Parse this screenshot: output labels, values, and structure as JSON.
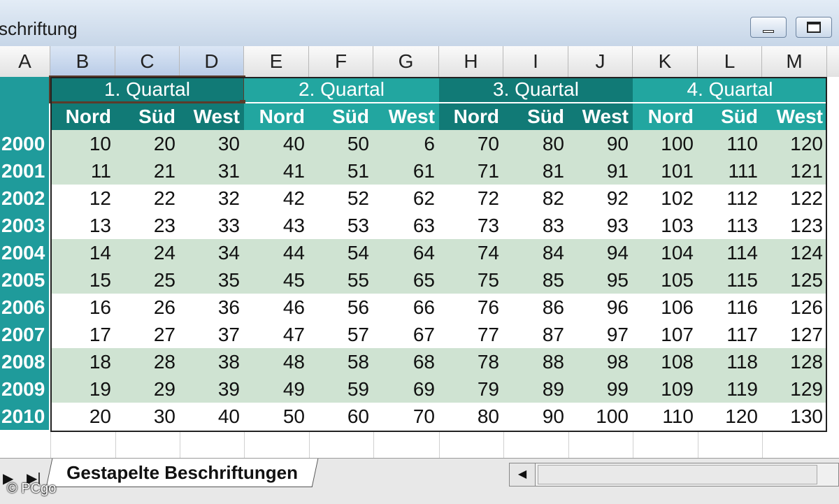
{
  "window": {
    "title": "schriftung"
  },
  "columns": [
    "A",
    "B",
    "C",
    "D",
    "E",
    "F",
    "G",
    "H",
    "I",
    "J",
    "K",
    "L",
    "M"
  ],
  "quarters": [
    "1. Quartal",
    "2. Quartal",
    "3. Quartal",
    "4. Quartal"
  ],
  "regions": [
    "Nord",
    "Süd",
    "West",
    "Nord",
    "Süd",
    "West",
    "Nord",
    "Süd",
    "West",
    "Nord",
    "Süd",
    "West"
  ],
  "years": [
    "2000",
    "2001",
    "2002",
    "2003",
    "2004",
    "2005",
    "2006",
    "2007",
    "2008",
    "2009",
    "2010"
  ],
  "rows": [
    [
      10,
      20,
      30,
      40,
      50,
      6,
      70,
      80,
      90,
      100,
      110,
      120
    ],
    [
      11,
      21,
      31,
      41,
      51,
      61,
      71,
      81,
      91,
      101,
      111,
      121
    ],
    [
      12,
      22,
      32,
      42,
      52,
      62,
      72,
      82,
      92,
      102,
      112,
      122
    ],
    [
      13,
      23,
      33,
      43,
      53,
      63,
      73,
      83,
      93,
      103,
      113,
      123
    ],
    [
      14,
      24,
      34,
      44,
      54,
      64,
      74,
      84,
      94,
      104,
      114,
      124
    ],
    [
      15,
      25,
      35,
      45,
      55,
      65,
      75,
      85,
      95,
      105,
      115,
      125
    ],
    [
      16,
      26,
      36,
      46,
      56,
      66,
      76,
      86,
      96,
      106,
      116,
      126
    ],
    [
      17,
      27,
      37,
      47,
      57,
      67,
      77,
      87,
      97,
      107,
      117,
      127
    ],
    [
      18,
      28,
      38,
      48,
      58,
      68,
      78,
      88,
      98,
      108,
      118,
      128
    ],
    [
      19,
      29,
      39,
      49,
      59,
      69,
      79,
      89,
      99,
      109,
      119,
      129
    ],
    [
      20,
      30,
      40,
      50,
      60,
      70,
      80,
      90,
      100,
      110,
      120,
      130
    ]
  ],
  "sheet_tab": "Gestapelte Beschriftungen",
  "watermark": "© PCgo",
  "colors": {
    "header_dark": "#117a76",
    "header_light": "#22a6a0",
    "row_shade": "#cfe3d2",
    "row_header": "#1f9b9b"
  }
}
